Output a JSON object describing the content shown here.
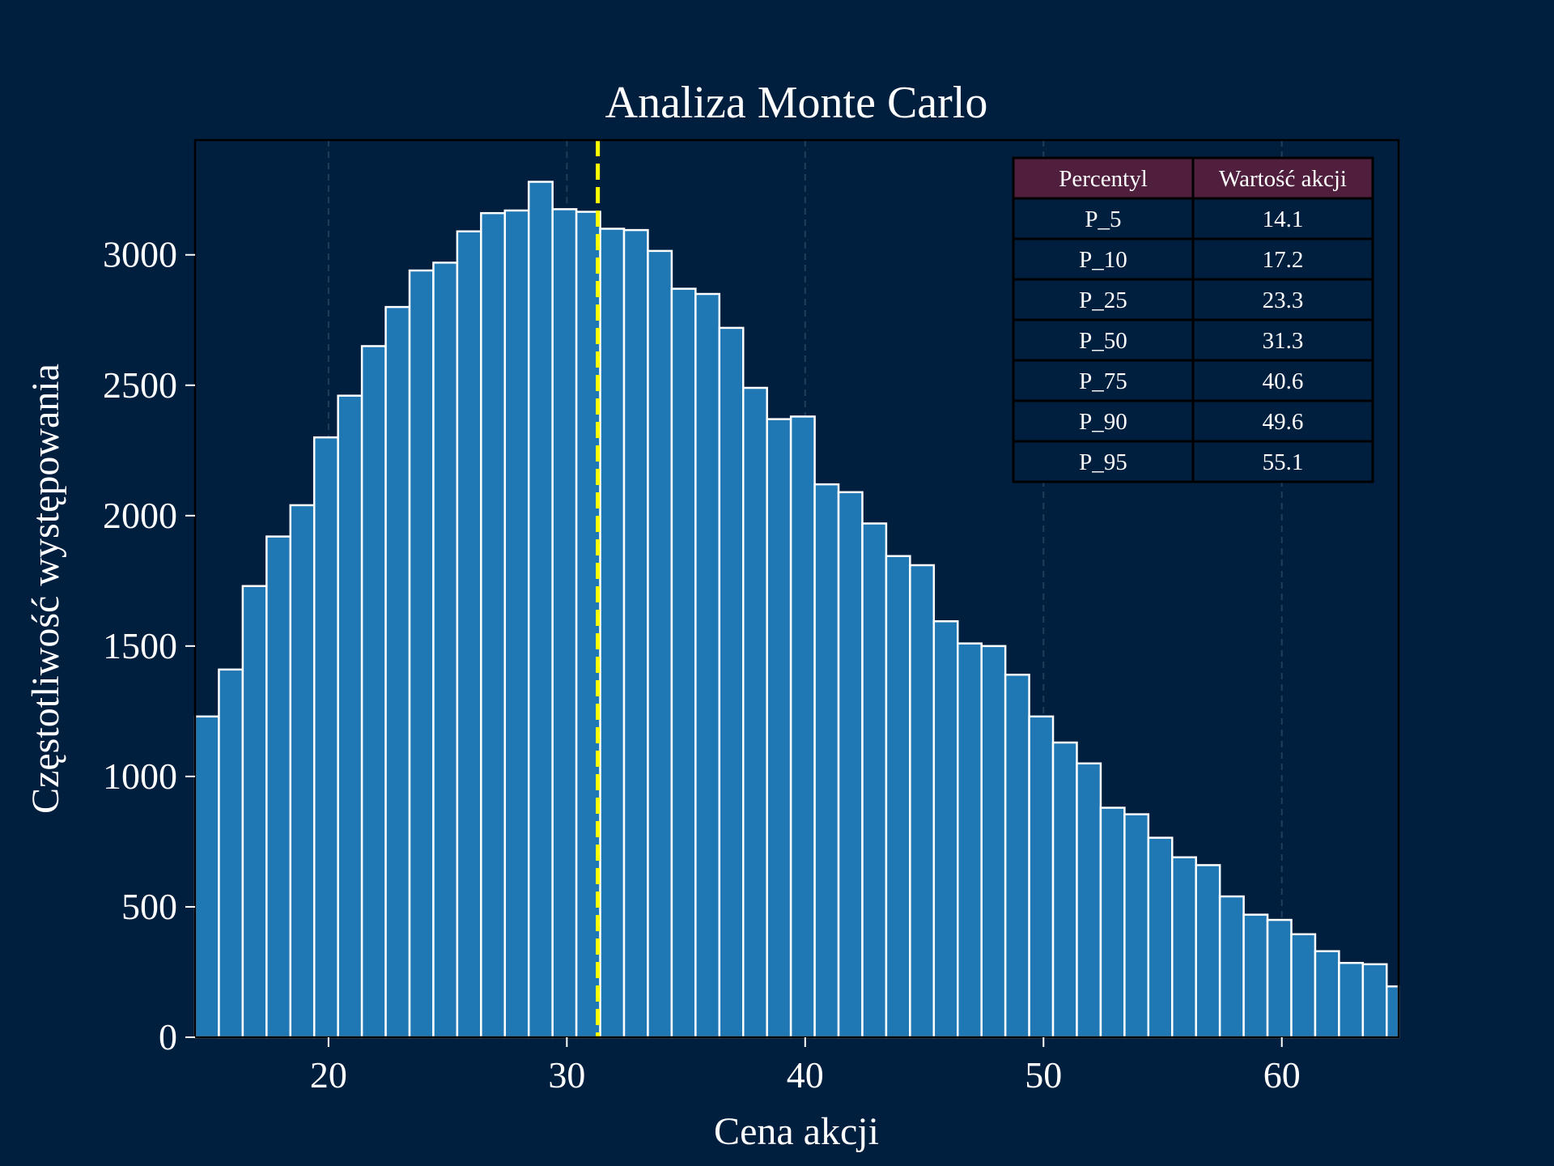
{
  "chart_data": {
    "type": "bar",
    "title": "Analiza Monte Carlo",
    "xlabel": "Cena akcji",
    "ylabel": "Częstotliwość występowania",
    "xlim": [
      14.4,
      64.9
    ],
    "ylim": [
      0,
      3440
    ],
    "xticks": [
      20,
      30,
      40,
      50,
      60
    ],
    "yticks": [
      0,
      500,
      1000,
      1500,
      2000,
      2500,
      3000
    ],
    "grid": "x",
    "bin_start": 14.4,
    "bin_width": 1.0,
    "values": [
      1230,
      1410,
      1730,
      1920,
      2040,
      2300,
      2460,
      2650,
      2800,
      2940,
      2970,
      3090,
      3160,
      3170,
      3280,
      3175,
      3165,
      3100,
      3095,
      3015,
      2870,
      2850,
      2720,
      2490,
      2370,
      2380,
      2120,
      2090,
      1970,
      1845,
      1810,
      1595,
      1510,
      1500,
      1390,
      1230,
      1130,
      1050,
      880,
      855,
      765,
      690,
      660,
      540,
      470,
      450,
      395,
      330,
      285,
      280,
      195
    ],
    "median_line": {
      "x": 31.3,
      "color": "#ffff00",
      "style": "dashed"
    },
    "bar_color": "#1f77b4",
    "bar_edge_color": "#ffffff",
    "background_color": "#001f3f"
  },
  "table": {
    "placement": "top-right",
    "header_color": "#4f1f3d",
    "headers": [
      "Percentyl",
      "Wartość akcji"
    ],
    "rows": [
      [
        "P_5",
        "14.1"
      ],
      [
        "P_10",
        "17.2"
      ],
      [
        "P_25",
        "23.3"
      ],
      [
        "P_50",
        "31.3"
      ],
      [
        "P_75",
        "40.6"
      ],
      [
        "P_90",
        "49.6"
      ],
      [
        "P_95",
        "55.1"
      ]
    ]
  }
}
